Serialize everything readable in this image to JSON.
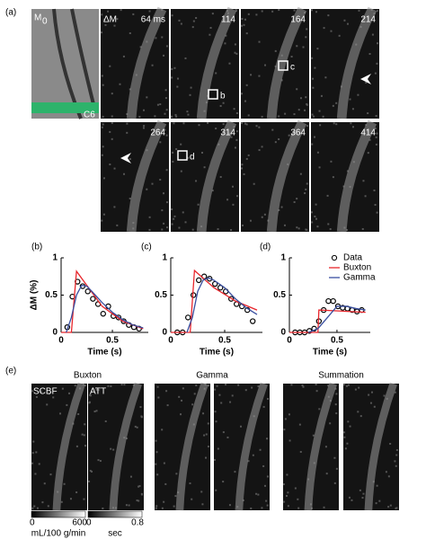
{
  "figure": {
    "panel_a": {
      "label": "(a)",
      "m0": "M",
      "m0_sub": "0",
      "c6": "C6",
      "dm": "ΔM",
      "times": [
        "64 ms",
        "114",
        "164",
        "214",
        "264",
        "314",
        "364",
        "414"
      ],
      "rois": [
        "b",
        "c",
        "d"
      ]
    },
    "panel_e": {
      "label": "(e)",
      "methods": [
        "Buxton",
        "Gamma",
        "Summation"
      ],
      "maps": [
        "SCBF",
        "ATT"
      ],
      "cbf_bar": {
        "min": "0",
        "max": "600",
        "unit": "mL/100 g/min"
      },
      "att_bar": {
        "min": "0",
        "max": "0.8",
        "unit": "sec"
      }
    }
  },
  "chart_data": [
    {
      "type": "line",
      "panel_label": "(b)",
      "x_label": "Time (s)",
      "y_label": "ΔM (%)",
      "xlim": [
        0,
        0.85
      ],
      "xticks": [
        0,
        0.5
      ],
      "ylim": [
        0,
        1
      ],
      "yticks": [
        0,
        0.5,
        1
      ],
      "series": [
        {
          "color": "#000000",
          "marker": "circle",
          "x": [
            0.06,
            0.11,
            0.16,
            0.21,
            0.26,
            0.31,
            0.36,
            0.41,
            0.46,
            0.51,
            0.56,
            0.61,
            0.66,
            0.71,
            0.76
          ],
          "values": [
            0.07,
            0.48,
            0.68,
            0.62,
            0.55,
            0.45,
            0.38,
            0.25,
            0.35,
            0.22,
            0.2,
            0.15,
            0.1,
            0.07,
            0.05
          ]
        },
        {
          "color": "#e8252b",
          "x": [
            0,
            0.1,
            0.15,
            0.4,
            0.6,
            0.8
          ],
          "values": [
            0,
            0,
            0.82,
            0.35,
            0.15,
            0.05
          ]
        },
        {
          "color": "#3a4fa0",
          "x": [
            0.05,
            0.1,
            0.15,
            0.2,
            0.25,
            0.3,
            0.4,
            0.5,
            0.6,
            0.7,
            0.8
          ],
          "values": [
            0,
            0.2,
            0.5,
            0.63,
            0.62,
            0.55,
            0.4,
            0.27,
            0.17,
            0.1,
            0.06
          ]
        }
      ]
    },
    {
      "type": "line",
      "panel_label": "(c)",
      "x_label": "Time (s)",
      "xlim": [
        0,
        0.85
      ],
      "xticks": [
        0,
        0.5
      ],
      "ylim": [
        0,
        1
      ],
      "yticks": [
        0,
        0.5,
        1
      ],
      "series": [
        {
          "color": "#000000",
          "marker": "circle",
          "x": [
            0.06,
            0.11,
            0.16,
            0.21,
            0.26,
            0.31,
            0.36,
            0.41,
            0.46,
            0.51,
            0.56,
            0.61,
            0.66,
            0.71,
            0.76
          ],
          "values": [
            0,
            0,
            0.2,
            0.5,
            0.7,
            0.75,
            0.72,
            0.65,
            0.6,
            0.55,
            0.45,
            0.38,
            0.35,
            0.3,
            0.15
          ]
        },
        {
          "color": "#e8252b",
          "x": [
            0,
            0.18,
            0.22,
            0.4,
            0.6,
            0.8
          ],
          "values": [
            0,
            0,
            0.83,
            0.6,
            0.42,
            0.3
          ]
        },
        {
          "color": "#3a4fa0",
          "x": [
            0.15,
            0.2,
            0.25,
            0.3,
            0.35,
            0.4,
            0.5,
            0.6,
            0.7,
            0.8
          ],
          "values": [
            0,
            0.2,
            0.55,
            0.7,
            0.73,
            0.7,
            0.6,
            0.45,
            0.33,
            0.24
          ]
        }
      ]
    },
    {
      "type": "line",
      "panel_label": "(d)",
      "x_label": "Time (s)",
      "legend": "upper right",
      "xlim": [
        0,
        0.85
      ],
      "xticks": [
        0,
        0.5
      ],
      "ylim": [
        0,
        1
      ],
      "yticks": [
        0,
        0.5,
        1
      ],
      "series": [
        {
          "name": "Data",
          "color": "#000000",
          "marker": "circle",
          "x": [
            0.06,
            0.11,
            0.16,
            0.21,
            0.26,
            0.31,
            0.36,
            0.41,
            0.46,
            0.51,
            0.56,
            0.61,
            0.66,
            0.71,
            0.76
          ],
          "values": [
            0,
            0,
            0,
            0.02,
            0.05,
            0.15,
            0.3,
            0.42,
            0.42,
            0.35,
            0.33,
            0.32,
            0.3,
            0.28,
            0.3
          ]
        },
        {
          "name": "Buxton",
          "color": "#e8252b",
          "x": [
            0,
            0.3,
            0.31,
            0.8
          ],
          "values": [
            0,
            0,
            0.3,
            0.27
          ]
        },
        {
          "name": "Gamma",
          "color": "#3a4fa0",
          "x": [
            0.2,
            0.3,
            0.4,
            0.5,
            0.6,
            0.7,
            0.8
          ],
          "values": [
            0,
            0.05,
            0.2,
            0.35,
            0.35,
            0.32,
            0.3
          ]
        }
      ]
    }
  ]
}
